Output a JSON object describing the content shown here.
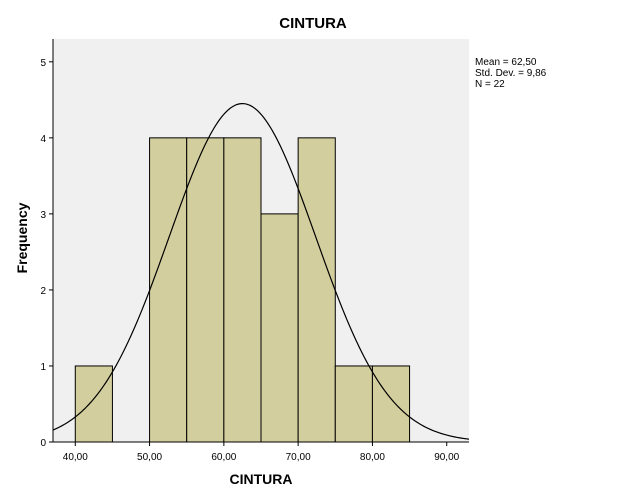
{
  "chart_data": {
    "type": "bar",
    "title": "CINTURA",
    "xlabel": "CINTURA",
    "ylabel": "Frequency",
    "bins": [
      {
        "from": 40,
        "to": 45,
        "count": 1
      },
      {
        "from": 45,
        "to": 50,
        "count": 0
      },
      {
        "from": 50,
        "to": 55,
        "count": 4
      },
      {
        "from": 55,
        "to": 60,
        "count": 4
      },
      {
        "from": 60,
        "to": 65,
        "count": 4
      },
      {
        "from": 65,
        "to": 70,
        "count": 3
      },
      {
        "from": 70,
        "to": 75,
        "count": 4
      },
      {
        "from": 75,
        "to": 80,
        "count": 1
      },
      {
        "from": 80,
        "to": 85,
        "count": 1
      }
    ],
    "xlim": [
      37,
      93
    ],
    "ylim": [
      0,
      5.3
    ],
    "xticks": [
      40,
      50,
      60,
      70,
      80,
      90
    ],
    "xtick_labels": [
      "40,00",
      "50,00",
      "60,00",
      "70,00",
      "80,00",
      "90,00"
    ],
    "yticks": [
      0,
      1,
      2,
      3,
      4,
      5
    ],
    "ytick_labels": [
      "0",
      "1",
      "2",
      "3",
      "4",
      "5"
    ],
    "normal_curve": {
      "mean": 62.5,
      "sd": 9.86,
      "n": 22,
      "bin_width": 5
    },
    "grid": false,
    "colors": {
      "bar_fill": "#d3ce9d",
      "plot_bg": "#f0f0f0",
      "stroke": "#000000"
    }
  },
  "stats": {
    "mean": "Mean = 62,50",
    "sd": "Std. Dev. = 9,86",
    "n": "N = 22"
  }
}
